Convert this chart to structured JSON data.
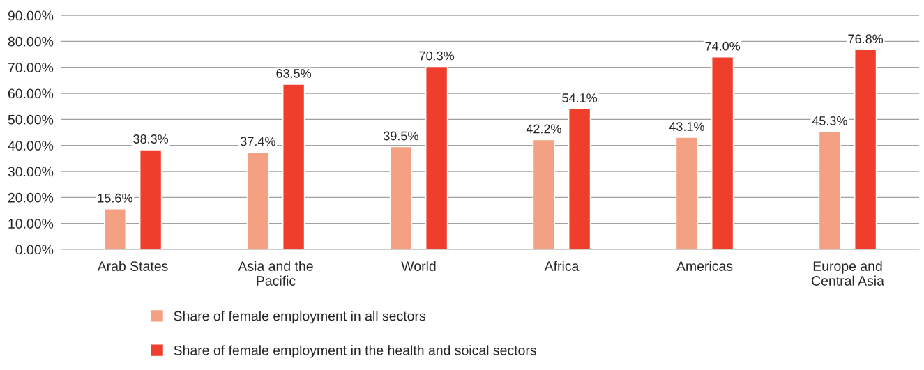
{
  "chart_data": {
    "type": "bar",
    "categories": [
      "Arab States",
      "Asia and the\nPacific",
      "World",
      "Africa",
      "Americas",
      "Europe and\nCentral Asia"
    ],
    "series": [
      {
        "name": "Share of female employment in all sectors",
        "color": "#f4a083",
        "values": [
          15.6,
          37.4,
          39.5,
          42.2,
          43.1,
          45.3
        ],
        "value_labels": [
          "15.6%",
          "37.4%",
          "39.5%",
          "42.2%",
          "43.1%",
          "45.3%"
        ]
      },
      {
        "name": "Share of female employment in the health and soical sectors",
        "color": "#ef3e2c",
        "values": [
          38.3,
          63.5,
          70.3,
          54.1,
          74.0,
          76.8
        ],
        "value_labels": [
          "38.3%",
          "63.5%",
          "70.3%",
          "54.1%",
          "74.0%",
          "76.8%"
        ]
      }
    ],
    "ylim": [
      0,
      90
    ],
    "yticks": [
      {
        "value": 0,
        "label": "0.00%"
      },
      {
        "value": 10,
        "label": "10.00%"
      },
      {
        "value": 20,
        "label": "20.00%"
      },
      {
        "value": 30,
        "label": "30.00%"
      },
      {
        "value": 40,
        "label": "40.00%"
      },
      {
        "value": 50,
        "label": "50.00%"
      },
      {
        "value": 60,
        "label": "60.00%"
      },
      {
        "value": 70,
        "label": "70.00%"
      },
      {
        "value": 80,
        "label": "80.00%"
      },
      {
        "value": 90,
        "label": "90.00%"
      }
    ],
    "grid": "y",
    "legend": "bottom"
  }
}
